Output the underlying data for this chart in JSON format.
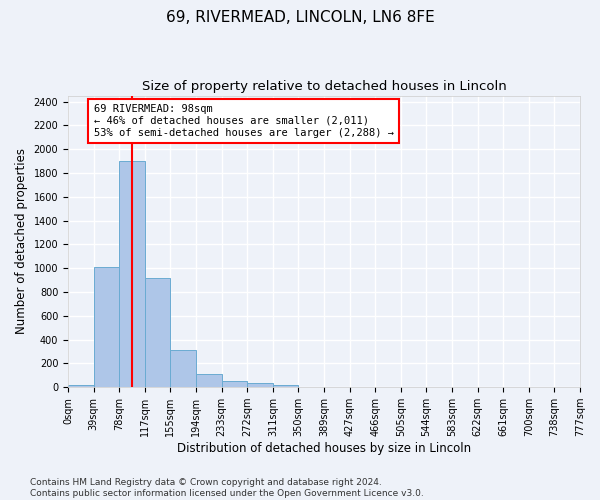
{
  "title": "69, RIVERMEAD, LINCOLN, LN6 8FE",
  "subtitle": "Size of property relative to detached houses in Lincoln",
  "xlabel": "Distribution of detached houses by size in Lincoln",
  "ylabel": "Number of detached properties",
  "bar_color": "#aec6e8",
  "bar_edge_color": "#6aabd2",
  "bin_labels": [
    "0sqm",
    "39sqm",
    "78sqm",
    "117sqm",
    "155sqm",
    "194sqm",
    "233sqm",
    "272sqm",
    "311sqm",
    "350sqm",
    "389sqm",
    "427sqm",
    "466sqm",
    "505sqm",
    "544sqm",
    "583sqm",
    "622sqm",
    "661sqm",
    "700sqm",
    "738sqm",
    "777sqm"
  ],
  "bar_values": [
    20,
    1010,
    1900,
    920,
    315,
    110,
    55,
    33,
    20,
    0,
    0,
    0,
    0,
    0,
    0,
    0,
    0,
    0,
    0,
    0
  ],
  "ylim": [
    0,
    2450
  ],
  "yticks": [
    0,
    200,
    400,
    600,
    800,
    1000,
    1200,
    1400,
    1600,
    1800,
    2000,
    2200,
    2400
  ],
  "vline_x": 2.5,
  "annotation_text": "69 RIVERMEAD: 98sqm\n← 46% of detached houses are smaller (2,011)\n53% of semi-detached houses are larger (2,288) →",
  "annotation_box_color": "white",
  "annotation_box_edge_color": "red",
  "vline_color": "red",
  "footer_text": "Contains HM Land Registry data © Crown copyright and database right 2024.\nContains public sector information licensed under the Open Government Licence v3.0.",
  "background_color": "#eef2f9",
  "grid_color": "white",
  "title_fontsize": 11,
  "subtitle_fontsize": 9.5,
  "tick_fontsize": 7,
  "ylabel_fontsize": 8.5,
  "xlabel_fontsize": 8.5,
  "annotation_fontsize": 7.5,
  "footer_fontsize": 6.5
}
